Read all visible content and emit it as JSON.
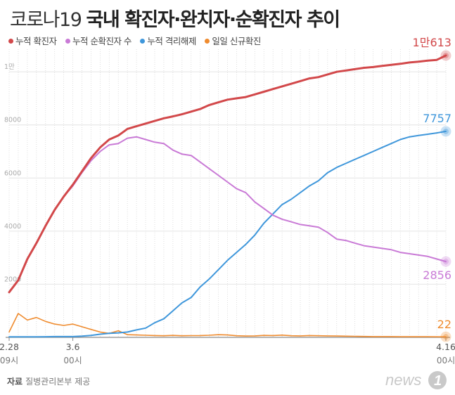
{
  "header": {
    "title_prefix": "코로나19",
    "title_main": "국내 확진자·완치자·순확진자 추이"
  },
  "legend": [
    {
      "label": "누적 확진자",
      "color": "#d2484a"
    },
    {
      "label": "누적 순확진자 수",
      "color": "#c97ad6"
    },
    {
      "label": "누적 격리해제",
      "color": "#3f97db"
    },
    {
      "label": "일일 신규확진",
      "color": "#ef8b2e"
    }
  ],
  "source": {
    "label": "자료",
    "text": "질병관리본부 제공"
  },
  "logo": {
    "text": "news1"
  },
  "chart_data": {
    "type": "line",
    "xlim": [
      0,
      48
    ],
    "ylim": [
      0,
      10613
    ],
    "yticks": [
      {
        "value": 2000,
        "label": "2000"
      },
      {
        "value": 4000,
        "label": "4000"
      },
      {
        "value": 6000,
        "label": "6000"
      },
      {
        "value": 8000,
        "label": "8000"
      },
      {
        "value": 10000,
        "label": "1만"
      }
    ],
    "xticks": [
      {
        "x": 0,
        "line1": "2.28",
        "line2": "09시"
      },
      {
        "x": 7,
        "line1": "3.6",
        "line2": "00시"
      },
      {
        "x": 48,
        "line1": "4.16",
        "line2": "00시"
      }
    ],
    "grid": "vertical-dotted",
    "series": [
      {
        "name": "누적 확진자",
        "color": "#d2484a",
        "end_label": "1만613",
        "values": [
          1700,
          2150,
          2950,
          3550,
          4200,
          4800,
          5300,
          5750,
          6250,
          6750,
          7150,
          7450,
          7600,
          7850,
          7950,
          8050,
          8150,
          8250,
          8320,
          8400,
          8500,
          8600,
          8750,
          8850,
          8950,
          9000,
          9050,
          9150,
          9250,
          9350,
          9450,
          9550,
          9650,
          9750,
          9800,
          9900,
          10000,
          10050,
          10100,
          10150,
          10180,
          10220,
          10260,
          10300,
          10350,
          10380,
          10420,
          10450,
          10613
        ]
      },
      {
        "name": "누적 순확진자 수",
        "color": "#c97ad6",
        "end_label": "2856",
        "values": [
          1700,
          2150,
          2950,
          3550,
          4200,
          4800,
          5300,
          5700,
          6200,
          6650,
          7000,
          7250,
          7300,
          7500,
          7550,
          7450,
          7350,
          7300,
          7050,
          6900,
          6850,
          6600,
          6350,
          6100,
          5850,
          5600,
          5450,
          5100,
          4850,
          4600,
          4450,
          4350,
          4250,
          4200,
          4150,
          3950,
          3700,
          3650,
          3550,
          3450,
          3400,
          3350,
          3300,
          3200,
          3150,
          3100,
          3050,
          2950,
          2856
        ]
      },
      {
        "name": "누적 격리해제",
        "color": "#3f97db",
        "end_label": "7757",
        "values": [
          22,
          22,
          22,
          22,
          25,
          28,
          30,
          30,
          45,
          75,
          120,
          150,
          170,
          200,
          280,
          350,
          550,
          700,
          1000,
          1300,
          1500,
          1900,
          2200,
          2550,
          2900,
          3200,
          3500,
          3850,
          4300,
          4650,
          5000,
          5200,
          5450,
          5700,
          5900,
          6200,
          6400,
          6550,
          6700,
          6850,
          7000,
          7150,
          7300,
          7450,
          7550,
          7600,
          7650,
          7700,
          7757
        ]
      },
      {
        "name": "일일 신규확진",
        "color": "#ef8b2e",
        "end_label": "22",
        "values": [
          200,
          900,
          650,
          750,
          600,
          500,
          450,
          500,
          400,
          300,
          200,
          150,
          250,
          100,
          90,
          80,
          70,
          60,
          75,
          60,
          65,
          70,
          80,
          100,
          90,
          60,
          50,
          55,
          75,
          70,
          85,
          60,
          55,
          70,
          60,
          55,
          50,
          45,
          40,
          35,
          30,
          30,
          28,
          25,
          25,
          24,
          23,
          22,
          22
        ]
      }
    ]
  }
}
